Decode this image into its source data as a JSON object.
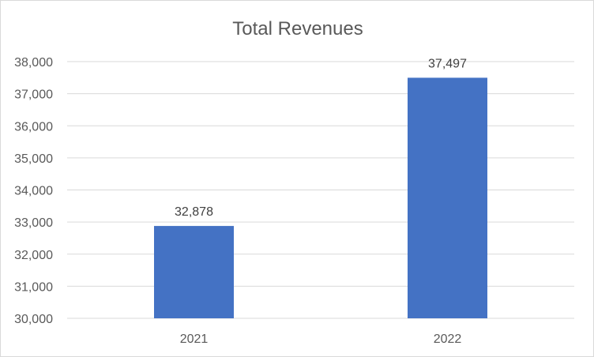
{
  "chart_data": {
    "type": "bar",
    "title": "Total Revenues",
    "categories": [
      "2021",
      "2022"
    ],
    "values": [
      32878,
      37497
    ],
    "value_labels": [
      "32,878",
      "37,497"
    ],
    "ylim": [
      30000,
      38000
    ],
    "yticks": [
      30000,
      31000,
      32000,
      33000,
      34000,
      35000,
      36000,
      37000,
      38000
    ],
    "ytick_labels": [
      "30,000",
      "31,000",
      "32,000",
      "33,000",
      "34,000",
      "35,000",
      "36,000",
      "37,000",
      "38,000"
    ],
    "grid": true,
    "legend": "none",
    "bar_color": "#4472C4",
    "gridline_color": "#d9d9d9",
    "axis_text_color": "#595959"
  }
}
